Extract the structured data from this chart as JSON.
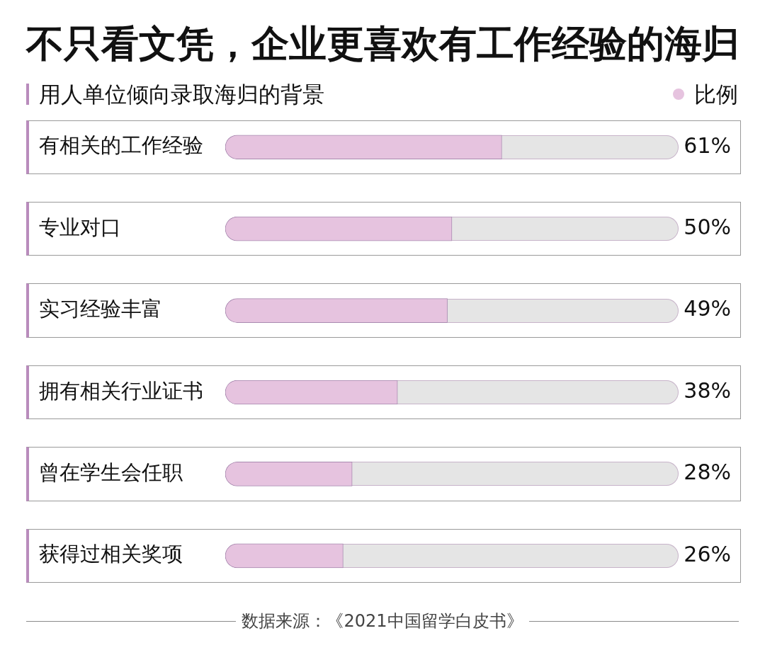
{
  "chart_data": {
    "type": "bar",
    "orientation": "horizontal",
    "title": "不只看文凭，企业更喜欢有工作经验的海归",
    "subtitle": "用人单位倾向录取海归的背景",
    "categories": [
      "有相关的工作经验",
      "专业对口",
      "实习经验丰富",
      "拥有相关行业证书",
      "曾在学生会任职",
      "获得过相关奖项"
    ],
    "series": [
      {
        "name": "比例",
        "color": "#e6c3df",
        "values": [
          61,
          50,
          49,
          38,
          28,
          26
        ],
        "value_labels": [
          "61%",
          "50%",
          "49%",
          "38%",
          "28%",
          "26%"
        ]
      }
    ],
    "xlim": [
      0,
      100
    ],
    "tick_labels": "y",
    "legend": "top right",
    "annotations": [
      "数据来源：《2021中国留学白皮书》"
    ]
  }
}
